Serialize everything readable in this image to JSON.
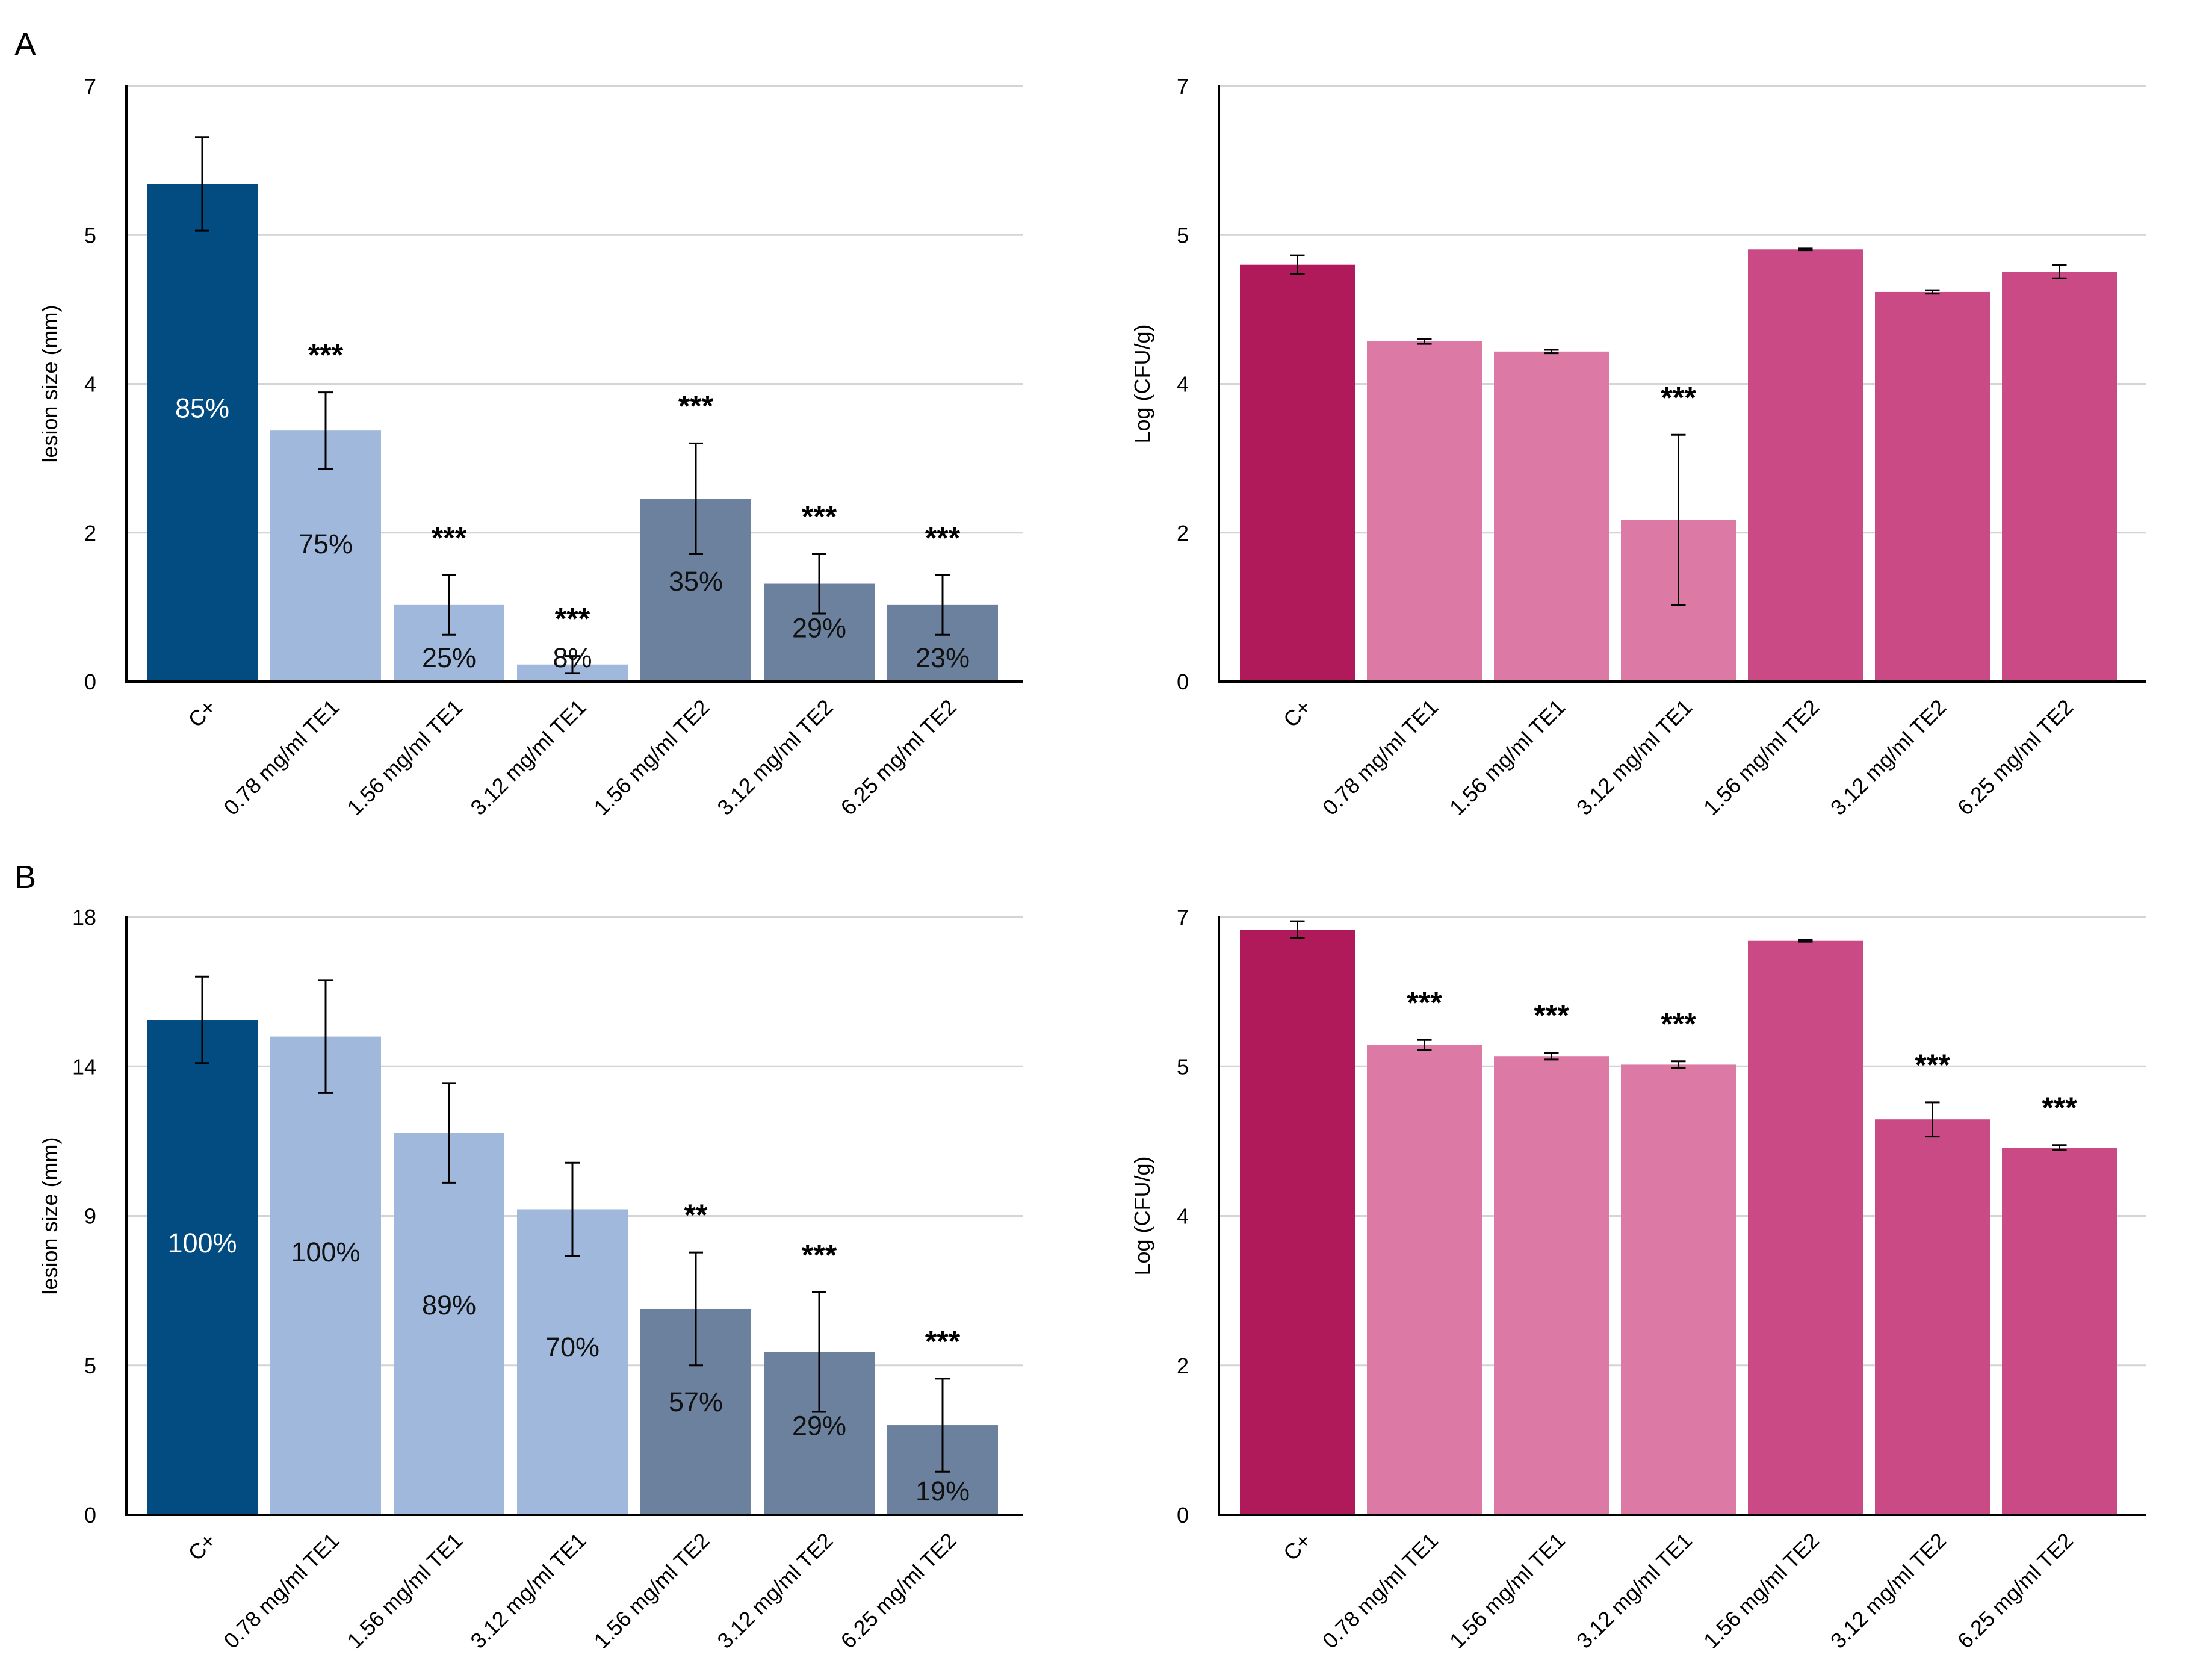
{
  "panel_labels": [
    "A",
    "B"
  ],
  "colors": {
    "navy": "#024c82",
    "light_blue": "#9fb8dc",
    "slate": "#6c819e",
    "crimson": "#b0195a",
    "pink_light": "#dc7aa5",
    "pink_dark": "#c94a85",
    "grid": "#d4d4d4",
    "axis": "#000000"
  },
  "chart_data": [
    {
      "type": "bar",
      "panel": "A",
      "position": "left",
      "ylabel": "lesion size (mm)",
      "ylim": [
        0,
        7
      ],
      "yticks": [
        "0",
        "2",
        "4",
        "5",
        "7"
      ],
      "categories": [
        "C+",
        "0.78 mg/ml TE1",
        "1.56 mg/ml TE1",
        "3.12 mg/ml TE1",
        "1.56 mg/ml TE2",
        "3.12 mg/ml TE2",
        "6.25 mg/ml TE2"
      ],
      "values": [
        5.85,
        2.95,
        0.9,
        0.2,
        2.15,
        1.15,
        0.9
      ],
      "errors": [
        0.55,
        0.45,
        0.35,
        0.1,
        0.65,
        0.35,
        0.35
      ],
      "percent_labels": [
        "85%",
        "75%",
        "25%",
        "8%",
        "35%",
        "29%",
        "23%"
      ],
      "significance": [
        "",
        "***",
        "***",
        "***",
        "***",
        "***",
        "***"
      ],
      "bar_colors": [
        "navy",
        "light_blue",
        "light_blue",
        "light_blue",
        "slate",
        "slate",
        "slate"
      ],
      "grid": true
    },
    {
      "type": "bar",
      "panel": "A",
      "position": "right",
      "ylabel": "Log (CFU/g)",
      "ylim": [
        0,
        7
      ],
      "yticks": [
        "0",
        "2",
        "4",
        "5",
        "7"
      ],
      "categories": [
        "C+",
        "0.78 mg/ml TE1",
        "1.56 mg/ml TE1",
        "3.12 mg/ml TE1",
        "1.56 mg/ml TE2",
        "3.12 mg/ml TE2",
        "6.25 mg/ml TE2"
      ],
      "values": [
        4.9,
        4.0,
        3.88,
        1.9,
        5.08,
        4.58,
        4.82
      ],
      "errors": [
        0.11,
        0.03,
        0.02,
        1.0,
        0.01,
        0.02,
        0.08
      ],
      "percent_labels": [
        "",
        "",
        "",
        "",
        "",
        "",
        ""
      ],
      "significance": [
        "",
        "",
        "",
        "***",
        "",
        "",
        ""
      ],
      "bar_colors": [
        "crimson",
        "pink_light",
        "pink_light",
        "pink_light",
        "pink_dark",
        "pink_dark",
        "pink_dark"
      ],
      "grid": true
    },
    {
      "type": "bar",
      "panel": "B",
      "position": "left",
      "ylabel": "lesion size (mm)",
      "ylim": [
        0,
        18
      ],
      "yticks": [
        "0",
        "5",
        "9",
        "14",
        "18"
      ],
      "categories": [
        "C+",
        "0.78 mg/ml TE1",
        "1.56 mg/ml TE1",
        "3.12 mg/ml TE1",
        "1.56 mg/ml TE2",
        "3.12 mg/ml TE2",
        "6.25 mg/ml TE2"
      ],
      "values": [
        14.9,
        14.4,
        11.5,
        9.2,
        6.2,
        4.9,
        2.7
      ],
      "errors": [
        1.3,
        1.7,
        1.5,
        1.4,
        1.7,
        1.8,
        1.4
      ],
      "percent_labels": [
        "100%",
        "100%",
        "89%",
        "70%",
        "57%",
        "29%",
        "19%"
      ],
      "significance": [
        "",
        "",
        "",
        "",
        "**",
        "***",
        "***"
      ],
      "bar_colors": [
        "navy",
        "light_blue",
        "light_blue",
        "light_blue",
        "slate",
        "slate",
        "slate"
      ],
      "grid": true
    },
    {
      "type": "bar",
      "panel": "B",
      "position": "right",
      "ylabel": "Log (CFU/g)",
      "ylim": [
        0,
        7
      ],
      "yticks": [
        "0",
        "2",
        "4",
        "5",
        "7"
      ],
      "categories": [
        "C+",
        "0.78 mg/ml TE1",
        "1.56 mg/ml TE1",
        "3.12 mg/ml TE1",
        "1.56 mg/ml TE2",
        "3.12 mg/ml TE2",
        "6.25 mg/ml TE2"
      ],
      "values": [
        6.85,
        5.5,
        5.37,
        5.27,
        6.72,
        4.63,
        4.3
      ],
      "errors": [
        0.1,
        0.06,
        0.04,
        0.04,
        0.01,
        0.2,
        0.03
      ],
      "percent_labels": [
        "",
        "",
        "",
        "",
        "",
        "",
        ""
      ],
      "significance": [
        "",
        "***",
        "***",
        "***",
        "",
        "***",
        "***"
      ],
      "bar_colors": [
        "crimson",
        "pink_light",
        "pink_light",
        "pink_light",
        "pink_dark",
        "pink_dark",
        "pink_dark"
      ],
      "grid": true
    }
  ]
}
